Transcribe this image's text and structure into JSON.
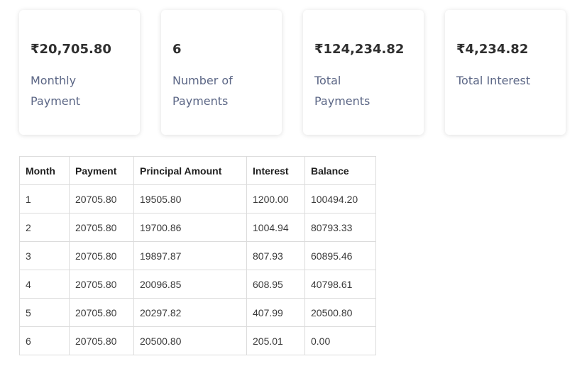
{
  "summary": [
    {
      "value": "₹20,705.80",
      "label": "Monthly Payment"
    },
    {
      "value": "6",
      "label": "Number of Payments"
    },
    {
      "value": "₹124,234.82",
      "label": "Total Payments"
    },
    {
      "value": "₹4,234.82",
      "label": "Total Interest"
    }
  ],
  "table": {
    "headers": [
      "Month",
      "Payment",
      "Principal Amount",
      "Interest",
      "Balance"
    ],
    "rows": [
      [
        "1",
        "20705.80",
        "19505.80",
        "1200.00",
        "100494.20"
      ],
      [
        "2",
        "20705.80",
        "19700.86",
        "1004.94",
        "80793.33"
      ],
      [
        "3",
        "20705.80",
        "19897.87",
        "807.93",
        "60895.46"
      ],
      [
        "4",
        "20705.80",
        "20096.85",
        "608.95",
        "40798.61"
      ],
      [
        "5",
        "20705.80",
        "20297.82",
        "407.99",
        "20500.80"
      ],
      [
        "6",
        "20705.80",
        "20500.80",
        "205.01",
        "0.00"
      ]
    ]
  }
}
